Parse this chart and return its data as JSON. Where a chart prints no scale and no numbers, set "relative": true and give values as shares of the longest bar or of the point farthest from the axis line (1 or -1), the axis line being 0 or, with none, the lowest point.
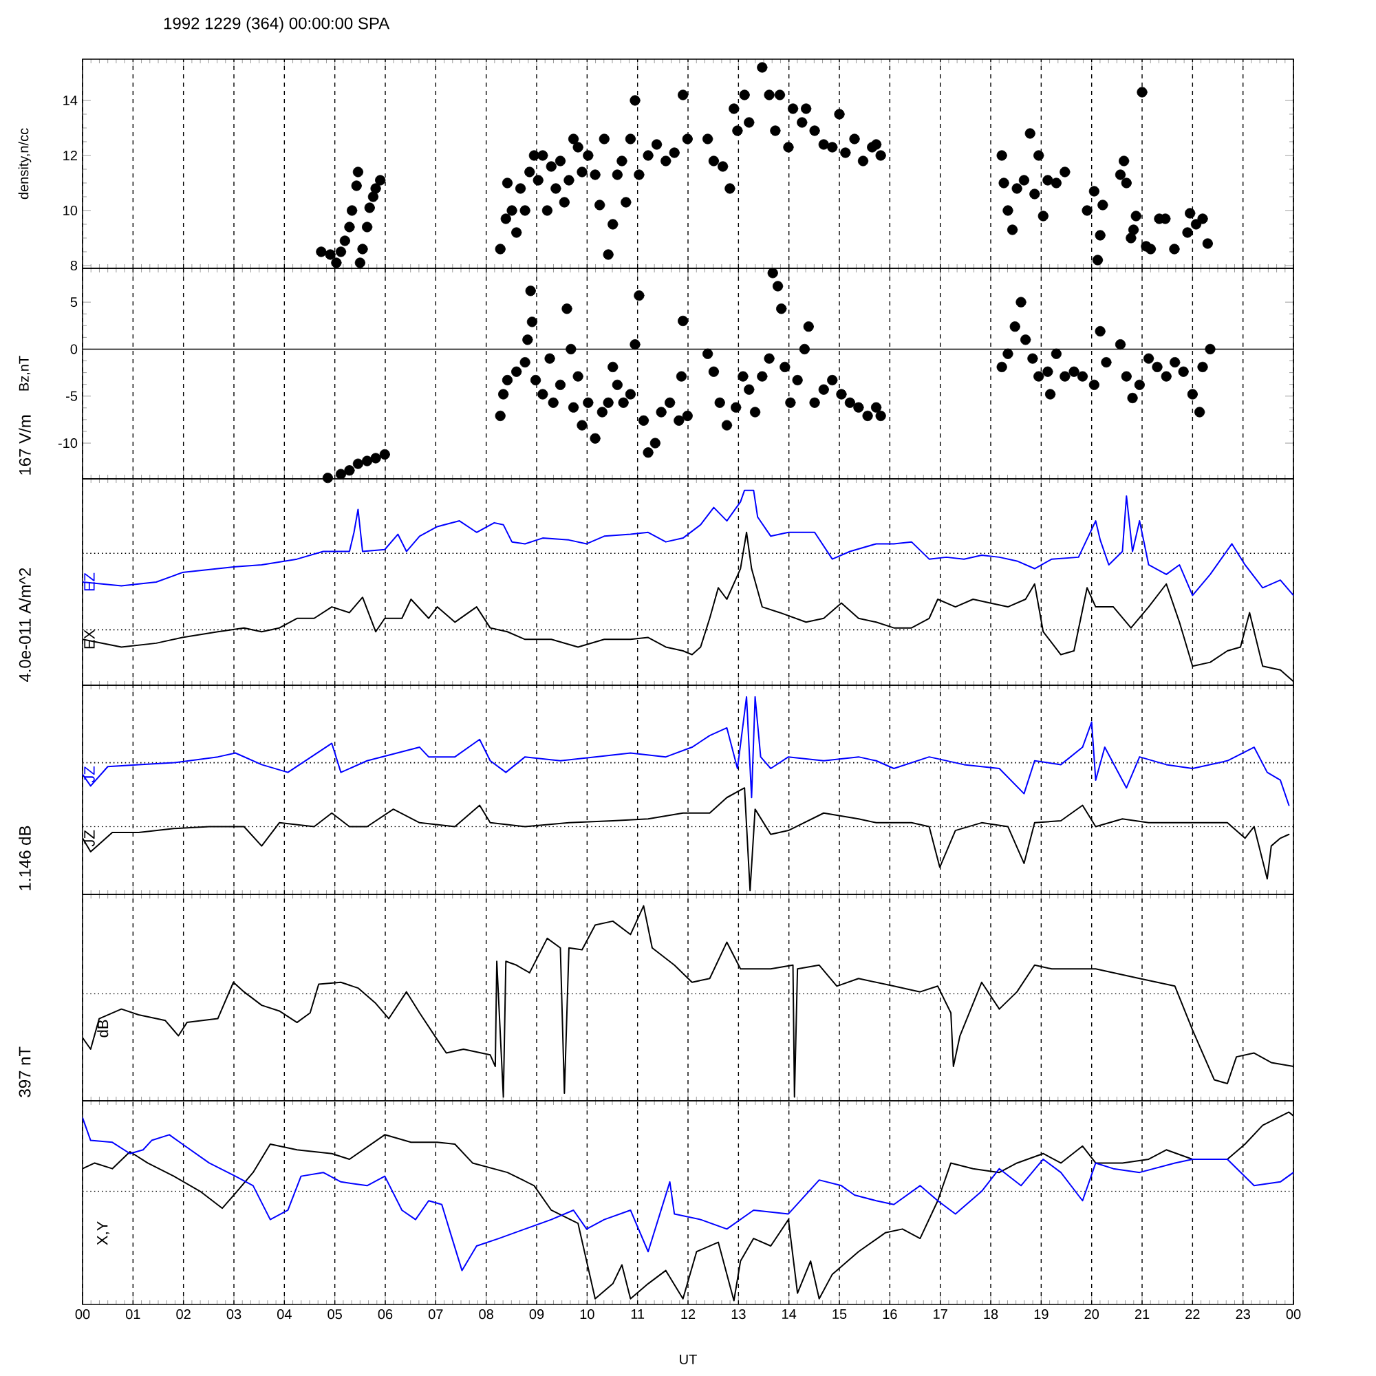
{
  "chart_data": [
    {
      "type": "scatter",
      "title": "1992 1229 (364) 00:00:00 SPA",
      "ylabel": "density,n/cc",
      "xlim": [
        0,
        24
      ],
      "xticks": [
        0,
        1,
        2,
        3,
        4,
        5,
        6,
        7,
        8,
        9,
        10,
        11,
        12,
        13,
        14,
        15,
        16,
        17,
        18,
        19,
        20,
        21,
        22,
        23,
        24
      ],
      "ylim": [
        7.9,
        15.5
      ],
      "yticks": [
        8,
        10,
        12,
        14
      ],
      "grid": "x",
      "tick_labels": "y",
      "marker": "circle",
      "series": [
        {
          "color": "#000000",
          "x": [
            4.73,
            4.91,
            5.03,
            5.12,
            5.2,
            5.29,
            5.34,
            5.43,
            5.46,
            5.5,
            5.55,
            5.64,
            5.69,
            5.76,
            5.81,
            5.9,
            8.28,
            8.39,
            8.42,
            8.51,
            8.6,
            8.68,
            8.77,
            8.86,
            8.95,
            9.03,
            9.12,
            9.21,
            9.29,
            9.38,
            9.47,
            9.55,
            9.64,
            9.73,
            9.82,
            9.9,
            10.02,
            10.16,
            10.25,
            10.34,
            10.42,
            10.51,
            10.6,
            10.69,
            10.77,
            10.86,
            10.95,
            11.03,
            11.21,
            11.38,
            11.56,
            11.73,
            11.9,
            11.99,
            12.39,
            12.51,
            12.69,
            12.83,
            12.91,
            12.98,
            13.12,
            13.21,
            13.47,
            13.61,
            13.73,
            13.82,
            13.99,
            14.08,
            14.26,
            14.34,
            14.51,
            14.69,
            14.86,
            15.0,
            15.12,
            15.3,
            15.47,
            15.65,
            15.73,
            15.82,
            18.22,
            18.26,
            18.34,
            18.43,
            18.52,
            18.66,
            18.78,
            18.87,
            18.95,
            19.04,
            19.13,
            19.3,
            19.47,
            19.91,
            20.05,
            20.12,
            20.17,
            20.22,
            20.57,
            20.64,
            20.69,
            20.78,
            20.83,
            20.88,
            21.0,
            21.08,
            21.17,
            21.34,
            21.46,
            21.64,
            21.9,
            21.95,
            22.07,
            22.2,
            22.3
          ],
          "values": [
            8.5,
            8.4,
            8.1,
            8.5,
            8.9,
            9.4,
            10.0,
            10.9,
            11.4,
            8.1,
            8.6,
            9.4,
            10.1,
            10.5,
            10.8,
            11.1,
            8.6,
            9.7,
            11.0,
            10.0,
            9.2,
            10.8,
            10.0,
            11.4,
            12.0,
            11.1,
            12.0,
            10.0,
            11.6,
            10.8,
            11.8,
            10.3,
            11.1,
            12.6,
            12.3,
            11.4,
            12.0,
            11.3,
            10.2,
            12.6,
            8.4,
            9.5,
            11.3,
            11.8,
            10.3,
            12.6,
            14.0,
            11.3,
            12.0,
            12.4,
            11.8,
            12.1,
            14.2,
            12.6,
            12.6,
            11.8,
            11.6,
            10.8,
            13.7,
            12.9,
            14.2,
            13.2,
            15.2,
            14.2,
            12.9,
            14.2,
            12.3,
            13.7,
            13.2,
            13.7,
            12.9,
            12.4,
            12.3,
            13.5,
            12.1,
            12.6,
            11.8,
            12.3,
            12.4,
            12.0,
            12.0,
            11.0,
            10.0,
            9.3,
            10.8,
            11.1,
            12.8,
            10.6,
            12.0,
            9.8,
            11.1,
            11.0,
            11.4,
            10.0,
            10.7,
            8.2,
            9.1,
            10.2,
            11.3,
            11.8,
            11.0,
            9.0,
            9.3,
            9.8,
            14.3,
            8.7,
            8.6,
            9.7,
            9.7,
            8.6,
            9.2,
            9.9,
            9.5,
            9.7,
            8.8
          ]
        }
      ]
    },
    {
      "type": "scatter",
      "ylabel": "Bz,nT",
      "xlim": [
        0,
        24
      ],
      "xticks": [
        0,
        1,
        2,
        3,
        4,
        5,
        6,
        7,
        8,
        9,
        10,
        11,
        12,
        13,
        14,
        15,
        16,
        17,
        18,
        19,
        20,
        21,
        22,
        23,
        24
      ],
      "ylim": [
        -13.8,
        8.6
      ],
      "yticks": [
        -10,
        -5,
        0,
        5
      ],
      "grid": "x",
      "tick_labels": "y",
      "marker": "circle",
      "ref_lines": [
        {
          "axis": "y",
          "value": 0,
          "line_style": "solid"
        }
      ],
      "series": [
        {
          "color": "#000000",
          "x": [
            4.86,
            5.12,
            5.29,
            5.46,
            5.64,
            5.81,
            5.99,
            8.28,
            8.34,
            8.42,
            8.6,
            8.77,
            8.82,
            8.88,
            8.91,
            8.98,
            9.12,
            9.26,
            9.33,
            9.47,
            9.6,
            9.68,
            9.73,
            9.82,
            9.9,
            10.02,
            10.16,
            10.3,
            10.42,
            10.51,
            10.6,
            10.72,
            10.86,
            10.95,
            11.03,
            11.12,
            11.21,
            11.35,
            11.47,
            11.64,
            11.82,
            11.87,
            11.9,
            11.99,
            12.39,
            12.51,
            12.63,
            12.77,
            12.95,
            13.09,
            13.21,
            13.33,
            13.47,
            13.61,
            13.68,
            13.78,
            13.85,
            13.92,
            14.03,
            14.17,
            14.31,
            14.39,
            14.51,
            14.69,
            14.86,
            15.04,
            15.21,
            15.38,
            15.56,
            15.73,
            15.82,
            18.22,
            18.34,
            18.48,
            18.6,
            18.69,
            18.83,
            18.95,
            19.13,
            19.18,
            19.3,
            19.47,
            19.65,
            19.82,
            20.05,
            20.17,
            20.29,
            20.57,
            20.69,
            20.81,
            20.95,
            21.13,
            21.3,
            21.48,
            21.65,
            21.82,
            22.0,
            22.14,
            22.2,
            22.35
          ],
          "values": [
            -13.7,
            -13.3,
            -12.9,
            -12.2,
            -11.9,
            -11.6,
            -11.2,
            -7.1,
            -4.8,
            -3.3,
            -2.4,
            -1.4,
            1.0,
            6.2,
            2.9,
            -3.3,
            -4.8,
            -1.0,
            -5.7,
            -3.8,
            4.3,
            0,
            -6.2,
            -2.9,
            -8.1,
            -5.7,
            -9.5,
            -6.7,
            -5.7,
            -1.9,
            -3.8,
            -5.7,
            -4.8,
            0.5,
            5.7,
            -7.6,
            -11.0,
            -10.0,
            -6.7,
            -5.7,
            -7.6,
            -2.9,
            3.0,
            -7.1,
            -0.5,
            -2.4,
            -5.7,
            -8.1,
            -6.2,
            -2.9,
            -4.3,
            -6.7,
            -2.9,
            -1.0,
            8.1,
            6.7,
            4.3,
            -1.9,
            -5.7,
            -3.3,
            0,
            2.4,
            -5.7,
            -4.3,
            -3.3,
            -4.8,
            -5.7,
            -6.2,
            -7.1,
            -6.2,
            -7.1,
            -1.9,
            -0.5,
            2.4,
            5.0,
            1.0,
            -1.0,
            -2.9,
            -2.4,
            -4.8,
            -0.5,
            -2.9,
            -2.4,
            -2.9,
            -3.8,
            1.9,
            -1.4,
            0.5,
            -2.9,
            -5.2,
            -3.8,
            -1.0,
            -1.9,
            -2.9,
            -1.4,
            -2.4,
            -4.8,
            -6.7,
            -1.9,
            0
          ]
        }
      ]
    },
    {
      "type": "line",
      "ylabel": "167 V/m",
      "relative": true,
      "xlim": [
        0,
        24
      ],
      "xticks": [
        0,
        1,
        2,
        3,
        4,
        5,
        6,
        7,
        8,
        9,
        10,
        11,
        12,
        13,
        14,
        15,
        16,
        17,
        18,
        19,
        20,
        21,
        22,
        23,
        24
      ],
      "grid": "x",
      "tick_labels": false,
      "ref_lines": [
        {
          "axis": "y",
          "value": 0.67,
          "line_style": "dotted"
        },
        {
          "axis": "y",
          "value": 0.27,
          "line_style": "dotted"
        }
      ],
      "series": [
        {
          "name": "EZ",
          "color": "#0000ff",
          "x": [
            0,
            0.77,
            1.46,
            1.98,
            2.68,
            3.03,
            3.55,
            4.25,
            4.77,
            5.29,
            5.38,
            5.46,
            5.55,
            5.99,
            6.25,
            6.42,
            6.68,
            7.03,
            7.47,
            7.81,
            8.16,
            8.34,
            8.51,
            8.77,
            9.12,
            9.64,
            9.99,
            10.34,
            10.86,
            11.21,
            11.56,
            11.9,
            12.25,
            12.51,
            12.77,
            13.04,
            13.12,
            13.3,
            13.38,
            13.64,
            13.99,
            14.51,
            14.86,
            15.21,
            15.73,
            16.08,
            16.43,
            16.78,
            17.12,
            17.47,
            17.82,
            18.17,
            18.52,
            18.87,
            19.21,
            19.74,
            20.08,
            20.17,
            20.34,
            20.61,
            20.69,
            20.81,
            20.95,
            21.13,
            21.48,
            21.74,
            22.0,
            22.35,
            22.78,
            23.04,
            23.39,
            23.74,
            24
          ],
          "values": [
            0.52,
            0.5,
            0.52,
            0.57,
            0.59,
            0.6,
            0.61,
            0.64,
            0.68,
            0.68,
            0.78,
            0.9,
            0.68,
            0.69,
            0.77,
            0.68,
            0.76,
            0.81,
            0.84,
            0.78,
            0.83,
            0.82,
            0.73,
            0.72,
            0.75,
            0.74,
            0.72,
            0.76,
            0.77,
            0.78,
            0.73,
            0.75,
            0.82,
            0.91,
            0.84,
            0.94,
            1.0,
            1.0,
            0.86,
            0.76,
            0.78,
            0.78,
            0.64,
            0.68,
            0.72,
            0.72,
            0.73,
            0.64,
            0.65,
            0.64,
            0.66,
            0.65,
            0.63,
            0.59,
            0.64,
            0.65,
            0.84,
            0.74,
            0.61,
            0.68,
            0.97,
            0.68,
            0.84,
            0.61,
            0.56,
            0.61,
            0.45,
            0.56,
            0.72,
            0.61,
            0.49,
            0.53,
            0.45
          ]
        },
        {
          "name": "EX",
          "color": "#000000",
          "x": [
            0,
            0.77,
            1.46,
            1.98,
            2.68,
            3.2,
            3.55,
            3.9,
            4.25,
            4.59,
            4.94,
            5.29,
            5.55,
            5.81,
            5.99,
            6.33,
            6.51,
            6.86,
            7.03,
            7.38,
            7.81,
            8.08,
            8.42,
            8.77,
            9.29,
            9.82,
            10.34,
            10.86,
            11.21,
            11.56,
            11.9,
            12.08,
            12.25,
            12.43,
            12.6,
            12.77,
            13.04,
            13.16,
            13.26,
            13.47,
            13.82,
            14.34,
            14.69,
            15.04,
            15.38,
            15.73,
            16.08,
            16.43,
            16.78,
            16.95,
            17.3,
            17.65,
            17.99,
            18.34,
            18.69,
            18.87,
            19.04,
            19.39,
            19.65,
            19.91,
            20.08,
            20.43,
            20.78,
            21.13,
            21.48,
            21.74,
            22.0,
            22.35,
            22.69,
            22.95,
            23.13,
            23.39,
            23.74,
            24
          ],
          "values": [
            0.22,
            0.18,
            0.2,
            0.23,
            0.26,
            0.28,
            0.26,
            0.28,
            0.33,
            0.33,
            0.39,
            0.36,
            0.44,
            0.26,
            0.33,
            0.33,
            0.43,
            0.33,
            0.39,
            0.31,
            0.39,
            0.28,
            0.26,
            0.22,
            0.22,
            0.18,
            0.22,
            0.22,
            0.23,
            0.18,
            0.16,
            0.14,
            0.18,
            0.33,
            0.49,
            0.43,
            0.59,
            0.78,
            0.59,
            0.39,
            0.36,
            0.31,
            0.33,
            0.41,
            0.33,
            0.31,
            0.28,
            0.28,
            0.33,
            0.43,
            0.39,
            0.43,
            0.41,
            0.39,
            0.43,
            0.51,
            0.26,
            0.14,
            0.16,
            0.49,
            0.39,
            0.39,
            0.28,
            0.39,
            0.51,
            0.31,
            0.08,
            0.1,
            0.16,
            0.18,
            0.36,
            0.08,
            0.06,
            0
          ]
        }
      ]
    },
    {
      "type": "line",
      "ylabel": "4.0e-011 A/m^2",
      "relative": true,
      "xlim": [
        0,
        24
      ],
      "xticks": [
        0,
        1,
        2,
        3,
        4,
        5,
        6,
        7,
        8,
        9,
        10,
        11,
        12,
        13,
        14,
        15,
        16,
        17,
        18,
        19,
        20,
        21,
        22,
        23,
        24
      ],
      "grid": "x",
      "tick_labels": false,
      "ref_lines": [
        {
          "axis": "y",
          "value": 0.66,
          "line_style": "dotted"
        },
        {
          "axis": "y",
          "value": 0.33,
          "line_style": "dotted"
        }
      ],
      "series": [
        {
          "name": "JZ",
          "color": "#0000ff",
          "x": [
            0,
            0.16,
            0.5,
            1.11,
            1.81,
            2.68,
            3.03,
            3.55,
            4.07,
            4.59,
            4.94,
            5.12,
            5.64,
            6.68,
            6.86,
            7.38,
            7.87,
            8.08,
            8.39,
            8.77,
            9.47,
            10.16,
            10.86,
            11.56,
            12.08,
            12.43,
            12.77,
            12.98,
            13.16,
            13.26,
            13.33,
            13.44,
            13.64,
            13.99,
            14.69,
            15.38,
            15.73,
            16.08,
            16.78,
            17.47,
            18.17,
            18.66,
            18.87,
            19.39,
            19.82,
            20.0,
            20.08,
            20.26,
            20.69,
            20.95,
            21.48,
            22.0,
            22.69,
            23.22,
            23.48,
            23.74,
            23.91
          ],
          "values": [
            0.6,
            0.54,
            0.64,
            0.65,
            0.66,
            0.69,
            0.71,
            0.65,
            0.61,
            0.7,
            0.76,
            0.61,
            0.67,
            0.74,
            0.69,
            0.69,
            0.78,
            0.67,
            0.61,
            0.69,
            0.67,
            0.69,
            0.71,
            0.69,
            0.74,
            0.8,
            0.84,
            0.63,
            1.0,
            0.48,
            1.0,
            0.69,
            0.63,
            0.69,
            0.67,
            0.69,
            0.67,
            0.63,
            0.69,
            0.65,
            0.63,
            0.5,
            0.67,
            0.65,
            0.74,
            0.87,
            0.57,
            0.74,
            0.53,
            0.69,
            0.65,
            0.63,
            0.67,
            0.74,
            0.61,
            0.57,
            0.44
          ]
        },
        {
          "name": "JZ",
          "color": "#000000",
          "x": [
            0,
            0.16,
            0.59,
            1.11,
            1.81,
            2.51,
            3.2,
            3.55,
            3.9,
            4.59,
            4.94,
            5.29,
            5.64,
            6.16,
            6.68,
            7.38,
            7.87,
            8.08,
            8.77,
            9.64,
            10.51,
            11.21,
            11.9,
            12.43,
            12.77,
            13.12,
            13.23,
            13.33,
            13.64,
            13.99,
            14.69,
            15.38,
            15.73,
            16.43,
            16.78,
            16.99,
            17.3,
            17.82,
            18.34,
            18.66,
            18.87,
            19.39,
            19.82,
            20.08,
            20.61,
            21.13,
            21.82,
            22.69,
            23.04,
            23.22,
            23.48,
            23.56,
            23.74,
            23.91
          ],
          "values": [
            0.27,
            0.2,
            0.3,
            0.3,
            0.32,
            0.33,
            0.33,
            0.23,
            0.35,
            0.33,
            0.4,
            0.33,
            0.33,
            0.42,
            0.35,
            0.33,
            0.44,
            0.35,
            0.33,
            0.35,
            0.36,
            0.37,
            0.4,
            0.4,
            0.48,
            0.53,
            0,
            0.42,
            0.29,
            0.31,
            0.4,
            0.37,
            0.35,
            0.35,
            0.33,
            0.12,
            0.31,
            0.35,
            0.33,
            0.14,
            0.35,
            0.36,
            0.44,
            0.33,
            0.37,
            0.35,
            0.35,
            0.35,
            0.27,
            0.33,
            0.06,
            0.23,
            0.27,
            0.29
          ]
        }
      ]
    },
    {
      "type": "line",
      "ylabel": "1.146 dB",
      "relative": true,
      "xlim": [
        0,
        24
      ],
      "xticks": [
        0,
        1,
        2,
        3,
        4,
        5,
        6,
        7,
        8,
        9,
        10,
        11,
        12,
        13,
        14,
        15,
        16,
        17,
        18,
        19,
        20,
        21,
        22,
        23,
        24
      ],
      "grid": "x",
      "tick_labels": false,
      "annotations": [
        "dB"
      ],
      "ref_lines": [
        {
          "axis": "y",
          "value": 0.54,
          "line_style": "dotted"
        }
      ],
      "series": [
        {
          "color": "#000000",
          "x": [
            0,
            0.16,
            0.33,
            0.77,
            1.11,
            1.64,
            1.9,
            2.07,
            2.68,
            2.99,
            3.2,
            3.55,
            3.9,
            4.25,
            4.51,
            4.68,
            5.12,
            5.46,
            5.81,
            6.07,
            6.42,
            6.68,
            7.03,
            7.21,
            7.55,
            8.08,
            8.18,
            8.21,
            8.34,
            8.39,
            8.6,
            8.86,
            9.21,
            9.47,
            9.55,
            9.64,
            9.9,
            10.16,
            10.51,
            10.86,
            11.12,
            11.29,
            11.73,
            12.08,
            12.43,
            12.77,
            13.04,
            13.64,
            14.08,
            14.11,
            14.17,
            14.6,
            14.95,
            15.38,
            15.73,
            16.08,
            16.6,
            16.95,
            17.21,
            17.26,
            17.39,
            17.82,
            18.17,
            18.52,
            18.87,
            19.21,
            20.08,
            20.95,
            21.65,
            22.0,
            22.43,
            22.69,
            22.87,
            23.22,
            23.56,
            24
          ],
          "values": [
            0.31,
            0.25,
            0.41,
            0.46,
            0.43,
            0.4,
            0.32,
            0.39,
            0.41,
            0.6,
            0.55,
            0.48,
            0.45,
            0.39,
            0.44,
            0.59,
            0.6,
            0.57,
            0.49,
            0.41,
            0.55,
            0.44,
            0.3,
            0.23,
            0.25,
            0.22,
            0.16,
            0.71,
            0,
            0.71,
            0.69,
            0.65,
            0.83,
            0.78,
            0.02,
            0.78,
            0.77,
            0.9,
            0.92,
            0.85,
            1.0,
            0.78,
            0.69,
            0.6,
            0.62,
            0.81,
            0.67,
            0.67,
            0.69,
            0,
            0.67,
            0.69,
            0.58,
            0.62,
            0.6,
            0.58,
            0.55,
            0.58,
            0.44,
            0.16,
            0.32,
            0.6,
            0.46,
            0.55,
            0.69,
            0.67,
            0.67,
            0.62,
            0.58,
            0.35,
            0.09,
            0.07,
            0.21,
            0.23,
            0.18,
            0.16
          ]
        }
      ]
    },
    {
      "type": "line",
      "ylabel": "397 nT",
      "xlabel": "UT",
      "relative": true,
      "xlim": [
        0,
        24
      ],
      "xticks": [
        {
          "value": 0,
          "label": "00"
        },
        {
          "value": 1,
          "label": "01"
        },
        {
          "value": 2,
          "label": "02"
        },
        {
          "value": 3,
          "label": "03"
        },
        {
          "value": 4,
          "label": "04"
        },
        {
          "value": 5,
          "label": "05"
        },
        {
          "value": 6,
          "label": "06"
        },
        {
          "value": 7,
          "label": "07"
        },
        {
          "value": 8,
          "label": "08"
        },
        {
          "value": 9,
          "label": "09"
        },
        {
          "value": 10,
          "label": "10"
        },
        {
          "value": 11,
          "label": "11"
        },
        {
          "value": 12,
          "label": "12"
        },
        {
          "value": 13,
          "label": "13"
        },
        {
          "value": 14,
          "label": "14"
        },
        {
          "value": 15,
          "label": "15"
        },
        {
          "value": 16,
          "label": "16"
        },
        {
          "value": 17,
          "label": "17"
        },
        {
          "value": 18,
          "label": "18"
        },
        {
          "value": 19,
          "label": "19"
        },
        {
          "value": 20,
          "label": "20"
        },
        {
          "value": 21,
          "label": "21"
        },
        {
          "value": 22,
          "label": "22"
        },
        {
          "value": 23,
          "label": "23"
        },
        {
          "value": 24,
          "label": "00"
        }
      ],
      "grid": "x",
      "tick_labels": "x",
      "annotations": [
        "X,Y"
      ],
      "ref_lines": [
        {
          "axis": "y",
          "value": 0.58,
          "line_style": "dotted"
        }
      ],
      "series": [
        {
          "color": "#000000",
          "x": [
            0,
            0.24,
            0.59,
            0.94,
            1.29,
            1.81,
            2.33,
            2.77,
            3.03,
            3.38,
            3.72,
            4.25,
            4.94,
            5.29,
            5.99,
            6.51,
            7.03,
            7.38,
            7.73,
            8.42,
            8.95,
            9.29,
            9.82,
            10.16,
            10.51,
            10.69,
            10.86,
            11.21,
            11.56,
            11.9,
            12.17,
            12.6,
            12.91,
            13.04,
            13.3,
            13.64,
            13.99,
            14.17,
            14.43,
            14.6,
            14.86,
            15.38,
            15.91,
            16.25,
            16.6,
            16.95,
            17.21,
            17.65,
            18.17,
            18.52,
            19.04,
            19.39,
            19.82,
            20.08,
            20.61,
            21.13,
            21.48,
            22.0,
            22.69,
            23.04,
            23.39,
            23.91,
            24
          ],
          "values": [
            0.7,
            0.73,
            0.7,
            0.79,
            0.73,
            0.66,
            0.58,
            0.49,
            0.57,
            0.68,
            0.83,
            0.8,
            0.78,
            0.75,
            0.88,
            0.84,
            0.84,
            0.83,
            0.73,
            0.68,
            0.61,
            0.48,
            0.41,
            0.01,
            0.09,
            0.19,
            0.01,
            0.09,
            0.16,
            0.01,
            0.26,
            0.31,
            0,
            0.21,
            0.33,
            0.29,
            0.43,
            0.04,
            0.21,
            0.01,
            0.14,
            0.26,
            0.36,
            0.38,
            0.33,
            0.53,
            0.73,
            0.7,
            0.68,
            0.73,
            0.78,
            0.73,
            0.82,
            0.73,
            0.73,
            0.75,
            0.8,
            0.75,
            0.75,
            0.83,
            0.93,
            1.0,
            0.98
          ]
        },
        {
          "color": "#0000ff",
          "x": [
            0,
            0.16,
            0.59,
            0.94,
            1.2,
            1.37,
            1.72,
            1.98,
            2.51,
            3.03,
            3.38,
            3.72,
            4.07,
            4.33,
            4.77,
            5.12,
            5.64,
            5.99,
            6.33,
            6.6,
            6.86,
            7.12,
            7.29,
            7.52,
            7.81,
            8.25,
            8.77,
            9.29,
            9.73,
            9.99,
            10.34,
            10.86,
            11.21,
            11.64,
            11.73,
            12.25,
            12.77,
            13.3,
            13.99,
            14.6,
            15.04,
            15.3,
            15.73,
            16.08,
            16.6,
            16.95,
            17.3,
            17.82,
            18.17,
            18.6,
            19.04,
            19.39,
            19.82,
            20.08,
            20.43,
            20.95,
            21.65,
            22.0,
            22.69,
            23.22,
            23.74,
            24
          ],
          "values": [
            0.97,
            0.85,
            0.84,
            0.78,
            0.8,
            0.85,
            0.88,
            0.83,
            0.73,
            0.66,
            0.61,
            0.43,
            0.48,
            0.66,
            0.68,
            0.63,
            0.61,
            0.66,
            0.48,
            0.43,
            0.53,
            0.51,
            0.36,
            0.16,
            0.29,
            0.33,
            0.38,
            0.43,
            0.48,
            0.38,
            0.43,
            0.48,
            0.26,
            0.63,
            0.46,
            0.43,
            0.38,
            0.48,
            0.46,
            0.64,
            0.61,
            0.56,
            0.53,
            0.51,
            0.61,
            0.53,
            0.46,
            0.58,
            0.7,
            0.61,
            0.75,
            0.68,
            0.53,
            0.73,
            0.7,
            0.68,
            0.73,
            0.75,
            0.75,
            0.61,
            0.63,
            0.68
          ]
        }
      ]
    }
  ]
}
